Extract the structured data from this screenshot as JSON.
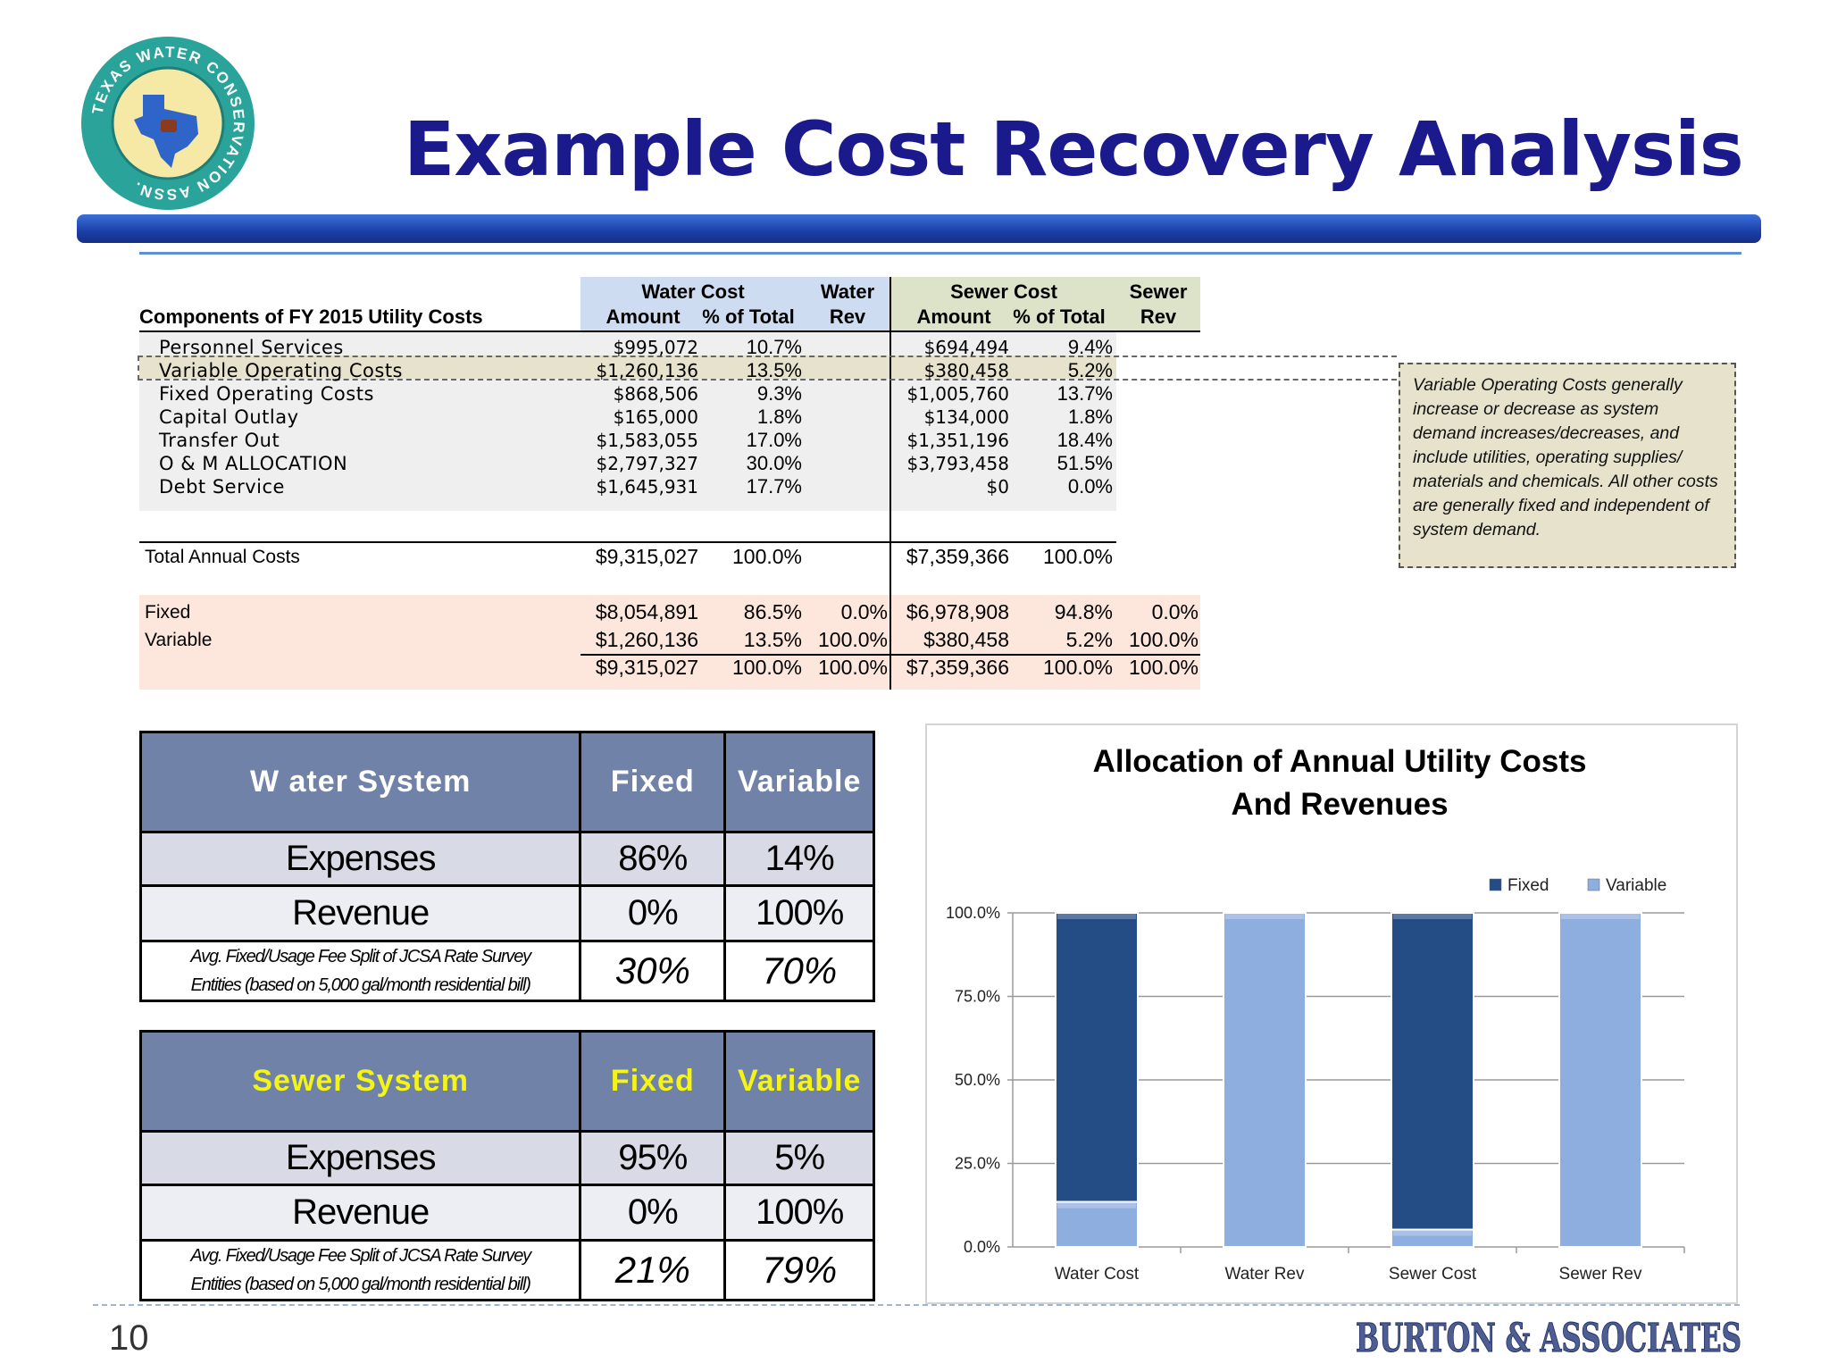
{
  "header": {
    "title": "Example Cost Recovery Analysis",
    "logo_text": "TEXAS WATER CONSERVATION ASSN."
  },
  "cost_table": {
    "section_label": "Components of FY 2015 Utility Costs",
    "water_cost_header": "Water Cost",
    "water_rev_header_1": "Water",
    "water_rev_header_2": "Rev",
    "sewer_cost_header": "Sewer Cost",
    "sewer_rev_header_1": "Sewer",
    "sewer_rev_header_2": "Rev",
    "amount_label": "Amount",
    "pct_label": "% of Total",
    "rows": [
      {
        "label": "Personnel Services",
        "water_amount": "$995,072",
        "water_pct": "10.7%",
        "sewer_amount": "$694,494",
        "sewer_pct": "9.4%"
      },
      {
        "label": "Variable Operating Costs",
        "water_amount": "$1,260,136",
        "water_pct": "13.5%",
        "sewer_amount": "$380,458",
        "sewer_pct": "5.2%"
      },
      {
        "label": "Fixed Operating Costs",
        "water_amount": "$868,506",
        "water_pct": "9.3%",
        "sewer_amount": "$1,005,760",
        "sewer_pct": "13.7%"
      },
      {
        "label": "Capital Outlay",
        "water_amount": "$165,000",
        "water_pct": "1.8%",
        "sewer_amount": "$134,000",
        "sewer_pct": "1.8%"
      },
      {
        "label": "Transfer Out",
        "water_amount": "$1,583,055",
        "water_pct": "17.0%",
        "sewer_amount": "$1,351,196",
        "sewer_pct": "18.4%"
      },
      {
        "label": "O & M ALLOCATION",
        "water_amount": "$2,797,327",
        "water_pct": "30.0%",
        "sewer_amount": "$3,793,458",
        "sewer_pct": "51.5%"
      },
      {
        "label": "Debt Service",
        "water_amount": "$1,645,931",
        "water_pct": "17.7%",
        "sewer_amount": "$0",
        "sewer_pct": "0.0%"
      }
    ],
    "total": {
      "label": "Total Annual Costs",
      "water_amount": "$9,315,027",
      "water_pct": "100.0%",
      "sewer_amount": "$7,359,366",
      "sewer_pct": "100.0%"
    },
    "split_rows": [
      {
        "label": "Fixed",
        "water_amount": "$8,054,891",
        "water_pct": "86.5%",
        "water_rev": "0.0%",
        "sewer_amount": "$6,978,908",
        "sewer_pct": "94.8%",
        "sewer_rev": "0.0%"
      },
      {
        "label": "Variable",
        "water_amount": "$1,260,136",
        "water_pct": "13.5%",
        "water_rev": "100.0%",
        "sewer_amount": "$380,458",
        "sewer_pct": "5.2%",
        "sewer_rev": "100.0%"
      },
      {
        "label": "",
        "water_amount": "$9,315,027",
        "water_pct": "100.0%",
        "water_rev": "100.0%",
        "sewer_amount": "$7,359,366",
        "sewer_pct": "100.0%",
        "sewer_rev": "100.0%"
      }
    ],
    "note": "Variable Operating Costs generally increase or decrease as system demand increases/decreases, and include utilities, operating supplies/ materials and chemicals.  All other costs are generally fixed and independent of system demand."
  },
  "water_summary": {
    "title": "W ater System",
    "fixed_label": "Fixed",
    "variable_label": "Variable",
    "expenses_label": "Expenses",
    "expenses_fixed": "86%",
    "expenses_variable": "14%",
    "revenue_label": "Revenue",
    "revenue_fixed": "0%",
    "revenue_variable": "100%",
    "survey_note_1": "Avg. Fixed/Usage Fee Split of JCSA Rate Survey",
    "survey_note_2": "Entities (based on 5,000 gal/month residential bill)",
    "survey_fixed": "30%",
    "survey_variable": "70%"
  },
  "sewer_summary": {
    "title": "Sewer System",
    "fixed_label": "Fixed",
    "variable_label": "Variable",
    "expenses_label": "Expenses",
    "expenses_fixed": "95%",
    "expenses_variable": "5%",
    "revenue_label": "Revenue",
    "revenue_fixed": "0%",
    "revenue_variable": "100%",
    "survey_note_1": "Avg. Fixed/Usage Fee Split of JCSA Rate Survey",
    "survey_note_2": "Entities (based on 5,000 gal/month residential bill)",
    "survey_fixed": "21%",
    "survey_variable": "79%"
  },
  "chart_data": {
    "type": "bar",
    "stacked": true,
    "title": "Allocation of Annual Utility Costs\nAnd Revenues",
    "title_line1": "Allocation of Annual Utility Costs",
    "title_line2": "And Revenues",
    "categories": [
      "Water Cost",
      "Water Rev",
      "Sewer Cost",
      "Sewer Rev"
    ],
    "series": [
      {
        "name": "Variable",
        "values": [
          13.5,
          100.0,
          5.2,
          100.0
        ],
        "color": "#8eaee0"
      },
      {
        "name": "Fixed",
        "values": [
          86.5,
          0.0,
          94.8,
          0.0
        ],
        "color": "#244d86"
      }
    ],
    "legend_order": [
      "Fixed",
      "Variable"
    ],
    "legend_position": "top-right",
    "ylim": [
      0,
      100
    ],
    "yticks": [
      "0.0%",
      "25.0%",
      "50.0%",
      "75.0%",
      "100.0%"
    ],
    "ytick_values": [
      0,
      25,
      50,
      75,
      100
    ],
    "grid": true,
    "xlabel": "",
    "ylabel": ""
  },
  "footer": {
    "page_number": "10",
    "brand": "BURTON & ASSOCIATES"
  }
}
